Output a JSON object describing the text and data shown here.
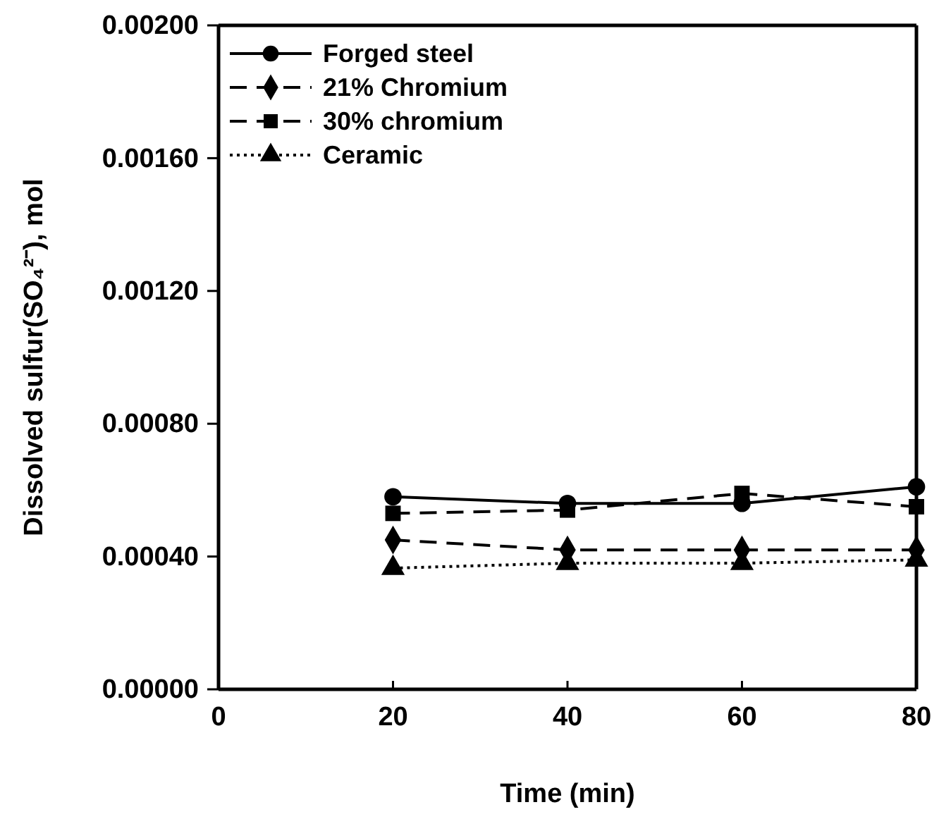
{
  "chart_data": {
    "type": "line",
    "xlabel": "Time (min)",
    "ylabel": "Dissolved sulfur(SO₄²⁻), mol",
    "x": [
      20,
      40,
      60,
      80
    ],
    "series": [
      {
        "name": "Forged steel",
        "color": "#000000",
        "marker": "circle",
        "line_style": "solid",
        "values": [
          0.00058,
          0.00056,
          0.00056,
          0.00061
        ]
      },
      {
        "name": "21% Chromium",
        "color": "#000000",
        "marker": "diamond",
        "line_style": "dashed",
        "values": [
          0.00045,
          0.00042,
          0.00042,
          0.00042
        ]
      },
      {
        "name": "30% chromium",
        "color": "#000000",
        "marker": "square",
        "line_style": "dashed",
        "values": [
          0.00053,
          0.00054,
          0.00059,
          0.00055
        ]
      },
      {
        "name": "Ceramic",
        "color": "#000000",
        "marker": "triangle",
        "line_style": "dotted",
        "values": [
          0.000365,
          0.00038,
          0.00038,
          0.00039
        ]
      }
    ],
    "xlim": [
      0,
      80
    ],
    "xticks": [
      0,
      20,
      40,
      60,
      80
    ],
    "ylim": [
      0,
      0.002
    ],
    "yticks": [
      {
        "value": 0,
        "label": "0.00000"
      },
      {
        "value": 0.0004,
        "label": "0.00040"
      },
      {
        "value": 0.0008,
        "label": "0.00080"
      },
      {
        "value": 0.0012,
        "label": "0.00120"
      },
      {
        "value": 0.0016,
        "label": "0.00160"
      },
      {
        "value": 0.002,
        "label": "0.00200"
      }
    ],
    "grid": false,
    "legend": "top left"
  }
}
